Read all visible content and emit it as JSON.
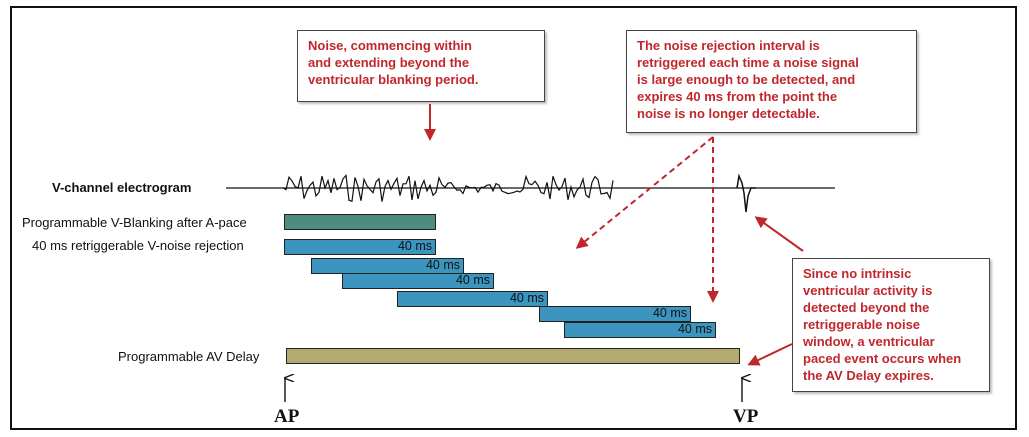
{
  "callouts": {
    "noise_start": "Noise, commencing within\nand extending beyond the\nventricular blanking period.",
    "retrigger": "The noise rejection interval is\nretriggered each time a noise signal\nis large enough to be detected, and\nexpires 40 ms from the point the\nnoise is no longer detectable.",
    "no_activity": "Since no intrinsic\nventricular activity is\ndetected beyond the\nretriggerable noise\nwindow, a ventricular\npaced event occurs when\nthe AV Delay expires."
  },
  "labels": {
    "electrogram": "V-channel electrogram",
    "blanking": "Programmable V-Blanking after A-pace",
    "noise_rejection": "40 ms retriggerable V-noise rejection",
    "av_delay": "Programmable AV Delay"
  },
  "noise_windows": [
    {
      "label": "40 ms"
    },
    {
      "label": "40 ms"
    },
    {
      "label": "40 ms"
    },
    {
      "label": "40 ms"
    },
    {
      "label": "40 ms"
    },
    {
      "label": "40 ms"
    }
  ],
  "markers": {
    "ap": "AP",
    "vp": "VP"
  },
  "colors": {
    "callout_text": "#c0272d",
    "arrow": "#c0272d",
    "blanking_bar": "#4f8c80",
    "noise_bar": "#3b95bf",
    "av_bar": "#b3aa72"
  }
}
